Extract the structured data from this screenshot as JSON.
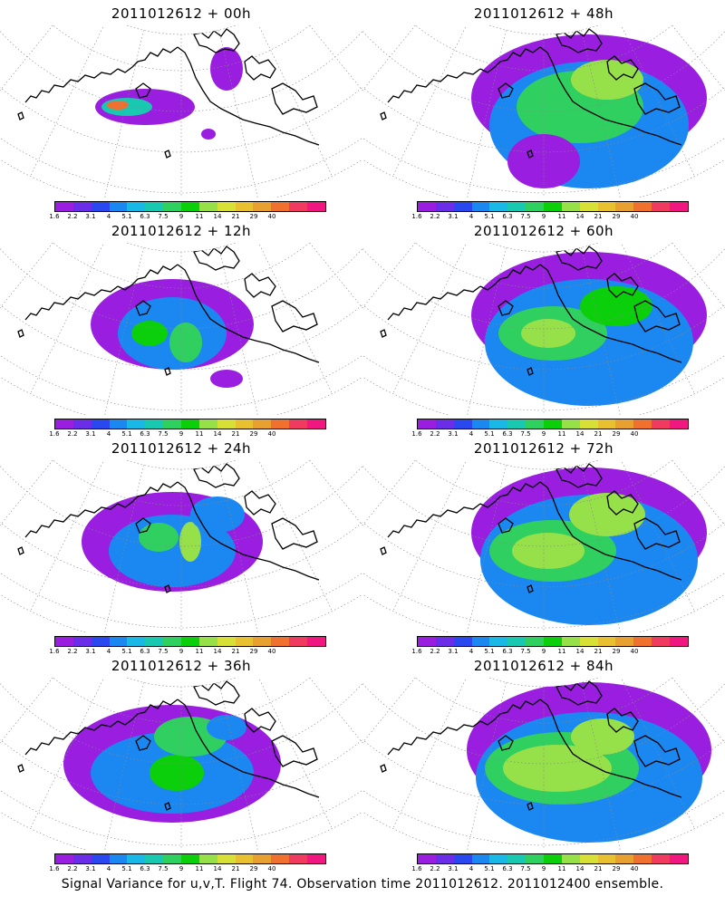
{
  "panels": [
    {
      "title": "2011012612 + 00h"
    },
    {
      "title": "2011012612 + 48h"
    },
    {
      "title": "2011012612 + 12h"
    },
    {
      "title": "2011012612 + 60h"
    },
    {
      "title": "2011012612 + 24h"
    },
    {
      "title": "2011012612 + 72h"
    },
    {
      "title": "2011012612 + 36h"
    },
    {
      "title": "2011012612 + 84h"
    }
  ],
  "colorbar": {
    "labels": [
      "1.6",
      "2.2",
      "3.1",
      "4",
      "5.1",
      "6.3",
      "7.5",
      "9",
      "11",
      "14",
      "21",
      "29",
      "40"
    ],
    "colors": [
      "#9a1ee0",
      "#6a2ee8",
      "#2a48f0",
      "#1b88f2",
      "#1ab8e6",
      "#18c8b0",
      "#30d060",
      "#0ccf0c",
      "#96e04a",
      "#d8e038",
      "#e8c030",
      "#e8a030",
      "#f07030",
      "#f03a60",
      "#f01880"
    ]
  },
  "caption": "Signal Variance for u,v,T. Flight 74. Observation time 2011012612. 2011012400 ensemble."
}
